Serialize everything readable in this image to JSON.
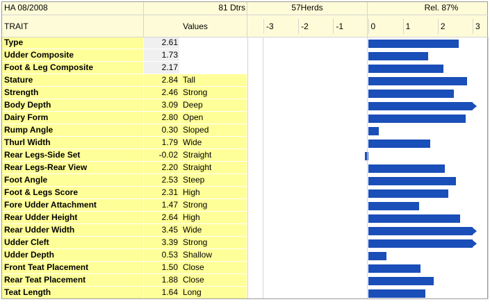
{
  "header": {
    "ha": "HA 08/2008",
    "dtrs": "81 Dtrs",
    "herds": "57Herds",
    "rel": "Rel. 87%",
    "trait_label": "TRAIT",
    "values_label": "Values"
  },
  "colors": {
    "bar": "#1a4eb8",
    "trait_bg": "#ffff99",
    "header_bg": "#fefcd8",
    "composite_value_bg": "#f0f0f0"
  },
  "chart_data": {
    "type": "bar",
    "orientation": "horizontal",
    "xlim": [
      -3,
      3
    ],
    "ticks": [
      "-3",
      "-2",
      "-1",
      "0",
      "1",
      "2",
      "3"
    ],
    "tick_values": [
      -3,
      -2,
      -1,
      0,
      1,
      2,
      3
    ],
    "categories": [
      "Type",
      "Udder Composite",
      "Foot & Leg Composite",
      "Stature",
      "Strength",
      "Body Depth",
      "Dairy Form",
      "Rump Angle",
      "Thurl Width",
      "Rear Legs-Side Set",
      "Rear Legs-Rear View",
      "Foot Angle",
      "Foot & Legs Score",
      "Fore Udder Attachment",
      "Rear Udder Height",
      "Rear Udder Width",
      "Udder Cleft",
      "Udder Depth",
      "Front Teat Placement",
      "Rear Teat Placement",
      "Teat Length"
    ],
    "values": [
      2.61,
      1.73,
      2.17,
      2.84,
      2.46,
      3.09,
      2.8,
      0.3,
      1.79,
      -0.02,
      2.2,
      2.53,
      2.31,
      1.47,
      2.64,
      3.45,
      3.39,
      0.53,
      1.5,
      1.88,
      1.64
    ],
    "value_labels": [
      "2.61",
      "1.73",
      "2.17",
      "2.84",
      "2.46",
      "3.09",
      "2.80",
      "0.30",
      "1.79",
      "-0.02",
      "2.20",
      "2.53",
      "2.31",
      "1.47",
      "2.64",
      "3.45",
      "3.39",
      "0.53",
      "1.50",
      "1.88",
      "1.64"
    ],
    "descriptors": [
      "",
      "",
      "",
      "Tall",
      "Strong",
      "Deep",
      "Open",
      "Sloped",
      "Wide",
      "Straight",
      "Straight",
      "Steep",
      "High",
      "Strong",
      "High",
      "Wide",
      "Strong",
      "Shallow",
      "Close",
      "Close",
      "Long"
    ],
    "clipped_beyond_axis": [
      false,
      false,
      false,
      false,
      false,
      true,
      false,
      false,
      false,
      false,
      false,
      false,
      false,
      false,
      false,
      true,
      true,
      false,
      false,
      false,
      false
    ]
  }
}
